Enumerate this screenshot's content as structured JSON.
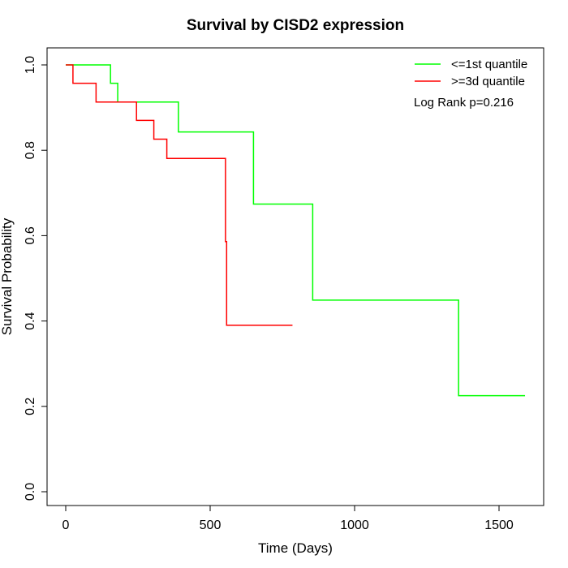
{
  "chart_data": {
    "type": "line",
    "title": "Survival by CISD2 expression",
    "xlabel": "Time (Days)",
    "ylabel": "Survival Probability",
    "xlim": [
      0,
      1600
    ],
    "ylim": [
      0,
      1.0
    ],
    "x_ticks": [
      0,
      500,
      1000,
      1500
    ],
    "y_ticks": [
      0.0,
      0.2,
      0.4,
      0.6,
      0.8,
      1.0
    ],
    "x_tick_labels": [
      "0",
      "500",
      "1000",
      "1500"
    ],
    "y_tick_labels": [
      "0.0",
      "0.2",
      "0.4",
      "0.6",
      "0.8",
      "1.0"
    ],
    "grid": false,
    "legend_position": "top-right",
    "annotation": "Log Rank p=0.216",
    "series": [
      {
        "name": "<=1st quantile",
        "color": "#00ff00",
        "step": true,
        "x": [
          0,
          155,
          180,
          390,
          650,
          855,
          1360,
          1590
        ],
        "y": [
          1.0,
          0.957,
          0.913,
          0.843,
          0.674,
          0.449,
          0.225,
          0.225
        ]
      },
      {
        "name": ">=3d quantile",
        "color": "#ff0000",
        "step": true,
        "x": [
          0,
          25,
          105,
          245,
          305,
          350,
          553,
          557,
          785
        ],
        "y": [
          1.0,
          0.957,
          0.913,
          0.87,
          0.826,
          0.781,
          0.586,
          0.39,
          0.39
        ]
      }
    ]
  }
}
